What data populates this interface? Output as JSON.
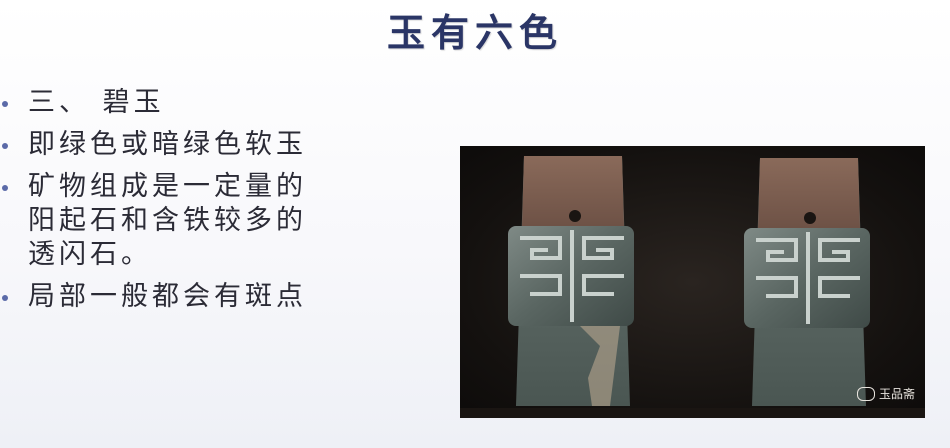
{
  "slide": {
    "title": "玉有六色",
    "bullets": [
      "三、 碧玉",
      "即绿色或暗绿色软玉",
      "矿物组成是一定量的\n阳起石和含铁较多的\n透闪石。",
      "局部一般都会有斑点"
    ]
  },
  "photo": {
    "watermark": "玉品斋",
    "watermark_icon": "wechat-icon"
  }
}
